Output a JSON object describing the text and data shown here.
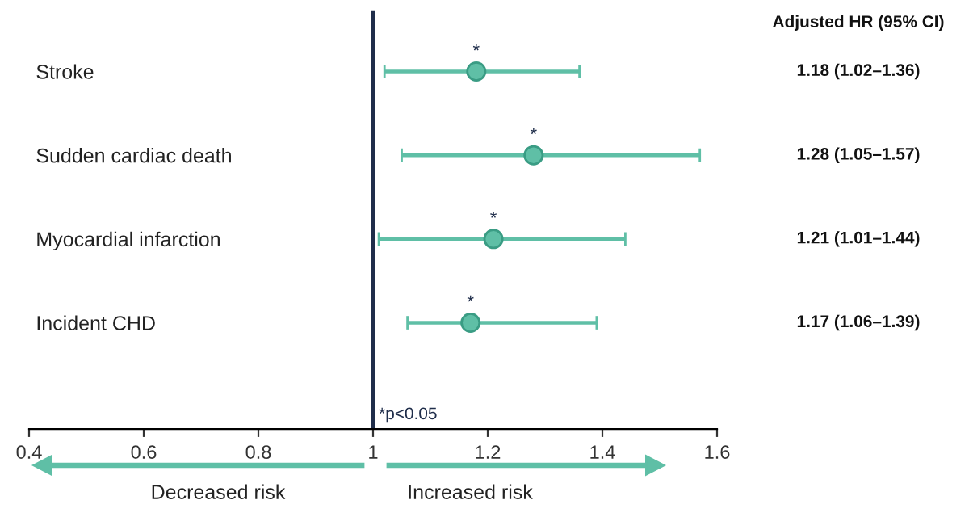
{
  "chart_data": {
    "type": "scatter",
    "orientation": "horizontal",
    "categories": [
      "Stroke",
      "Sudden cardiac death",
      "Myocardial infarction",
      "Incident CHD"
    ],
    "values": [
      1.18,
      1.28,
      1.21,
      1.17
    ],
    "errors": [
      [
        1.02,
        1.36
      ],
      [
        1.05,
        1.57
      ],
      [
        1.01,
        1.44
      ],
      [
        1.06,
        1.39
      ]
    ],
    "value_labels": [
      "1.18 (1.02–1.36)",
      "1.28 (1.05–1.57)",
      "1.21 (1.01–1.44)",
      "1.17 (1.06–1.39)"
    ],
    "legend_title": "Adjusted HR (95% CI)",
    "color": "#5fbfa6",
    "marker": "circle",
    "xlim": [
      0.4,
      1.6
    ],
    "xticks": [
      0.4,
      0.6,
      0.8,
      1,
      1.2,
      1.4,
      1.6
    ],
    "ref_lines": [
      {
        "axis": "x",
        "value": 1,
        "color": "#1f2d4a"
      }
    ],
    "grid": false,
    "annotations": [
      {
        "text": "*",
        "x": 1.18,
        "y": "Stroke"
      },
      {
        "text": "*",
        "x": 1.28,
        "y": "Sudden cardiac death"
      },
      {
        "text": "*",
        "x": 1.21,
        "y": "Myocardial infarction"
      },
      {
        "text": "*",
        "x": 1.17,
        "y": "Incident CHD"
      },
      "*p<0.05",
      "Decreased risk",
      "Increased risk"
    ]
  }
}
